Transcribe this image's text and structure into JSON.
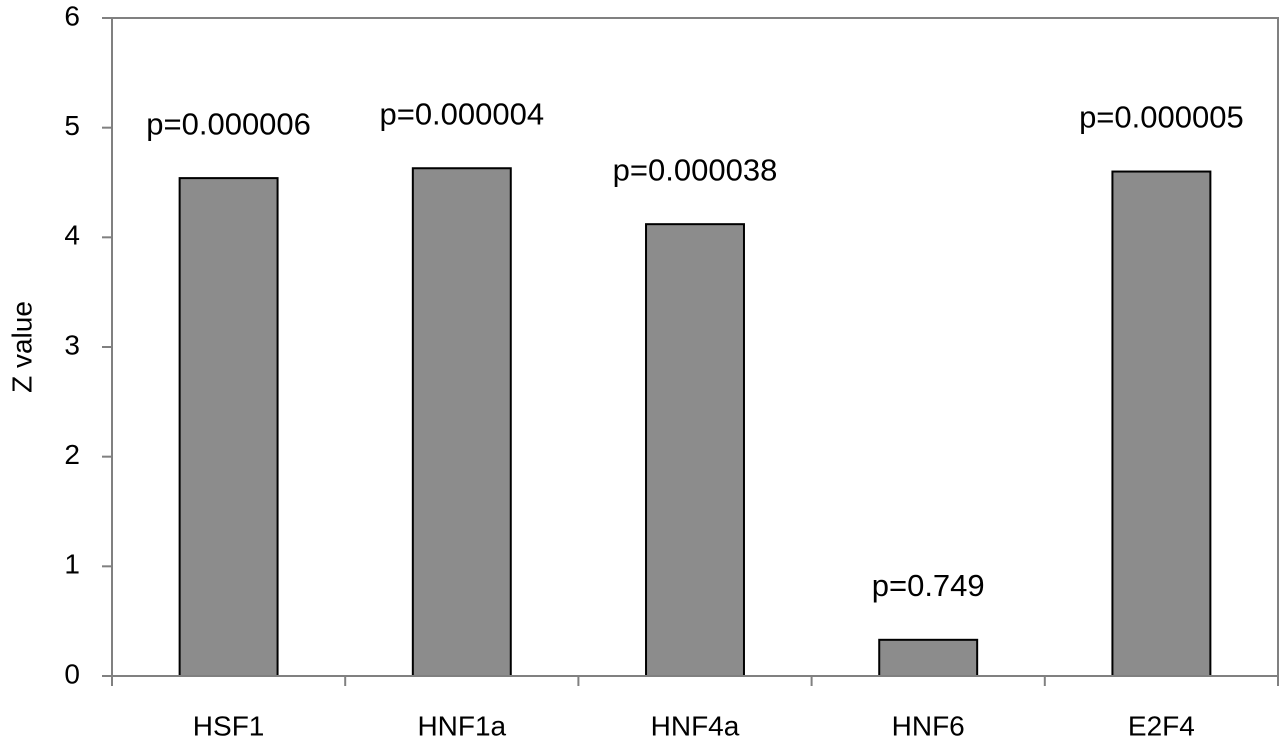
{
  "chart_data": {
    "type": "bar",
    "y_label": "Z value",
    "categories": [
      "HSF1",
      "HNF1a",
      "HNF4a",
      "HNF6",
      "E2F4"
    ],
    "values": [
      4.54,
      4.63,
      4.12,
      0.33,
      4.6
    ],
    "annotations": [
      "p=0.000006",
      "p=0.000004",
      "p=0.000038",
      "p=0.749",
      "p=0.000005"
    ],
    "color": "#8c8c8c",
    "ylim": [
      0,
      6
    ],
    "yticks": [
      0,
      1,
      2,
      3,
      4,
      5,
      6
    ]
  }
}
